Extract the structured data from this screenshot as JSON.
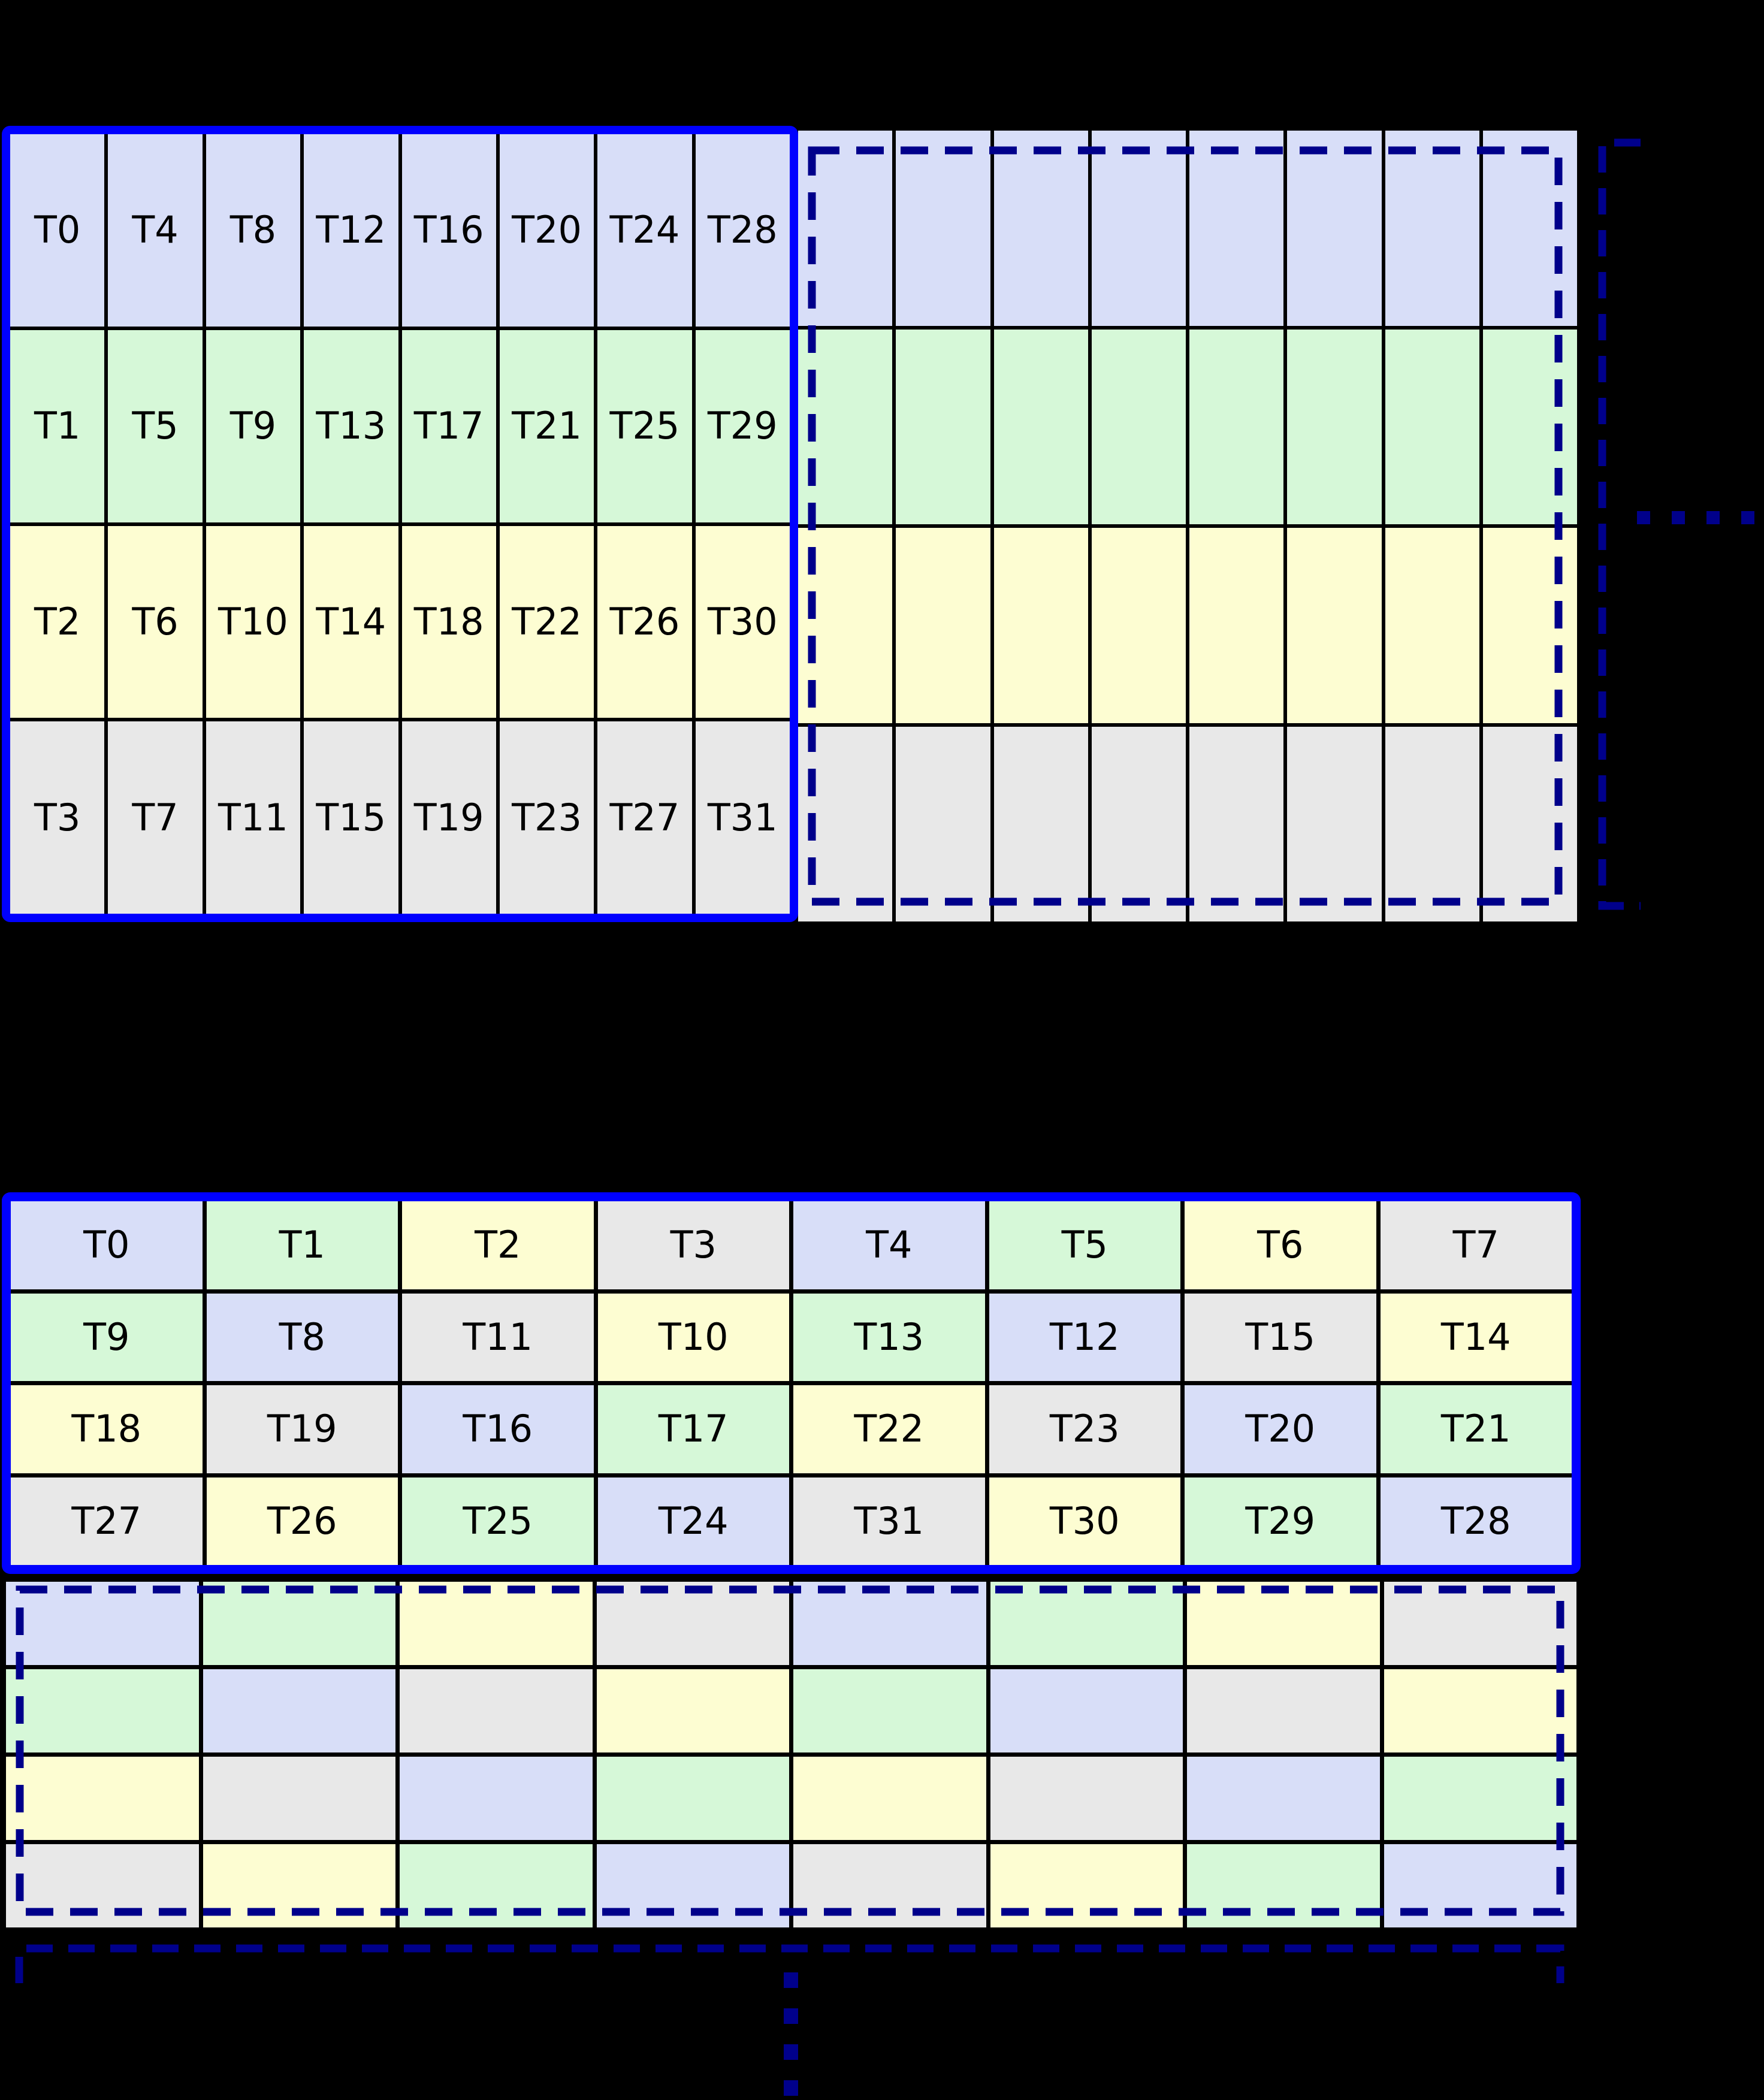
{
  "palette": {
    "background": "#000000",
    "solid_border": "#0000FF",
    "dashed_border": "#00008B",
    "grid_line": "#000000",
    "label_color": "#000000",
    "cell_colors": {
      "blue": "#D8DEF8",
      "green": "#D6F8D8",
      "yellow": "#FDFDD2",
      "gray": "#E8E8E8"
    }
  },
  "top_section": {
    "warp_grid": {
      "rows": [
        {
          "cells": [
            {
              "label": "T0",
              "color": "blue"
            },
            {
              "label": "T4",
              "color": "blue"
            },
            {
              "label": "T8",
              "color": "blue"
            },
            {
              "label": "T12",
              "color": "blue"
            },
            {
              "label": "T16",
              "color": "blue"
            },
            {
              "label": "T20",
              "color": "blue"
            },
            {
              "label": "T24",
              "color": "blue"
            },
            {
              "label": "T28",
              "color": "blue"
            }
          ]
        },
        {
          "cells": [
            {
              "label": "T1",
              "color": "green"
            },
            {
              "label": "T5",
              "color": "green"
            },
            {
              "label": "T9",
              "color": "green"
            },
            {
              "label": "T13",
              "color": "green"
            },
            {
              "label": "T17",
              "color": "green"
            },
            {
              "label": "T21",
              "color": "green"
            },
            {
              "label": "T25",
              "color": "green"
            },
            {
              "label": "T29",
              "color": "green"
            }
          ]
        },
        {
          "cells": [
            {
              "label": "T2",
              "color": "yellow"
            },
            {
              "label": "T6",
              "color": "yellow"
            },
            {
              "label": "T10",
              "color": "yellow"
            },
            {
              "label": "T14",
              "color": "yellow"
            },
            {
              "label": "T18",
              "color": "yellow"
            },
            {
              "label": "T22",
              "color": "yellow"
            },
            {
              "label": "T26",
              "color": "yellow"
            },
            {
              "label": "T30",
              "color": "yellow"
            }
          ]
        },
        {
          "cells": [
            {
              "label": "T3",
              "color": "gray"
            },
            {
              "label": "T7",
              "color": "gray"
            },
            {
              "label": "T11",
              "color": "gray"
            },
            {
              "label": "T15",
              "color": "gray"
            },
            {
              "label": "T19",
              "color": "gray"
            },
            {
              "label": "T23",
              "color": "gray"
            },
            {
              "label": "T27",
              "color": "gray"
            },
            {
              "label": "T31",
              "color": "gray"
            }
          ]
        }
      ]
    },
    "continuation_grid": {
      "rows": [
        {
          "cells": [
            {
              "label": "",
              "color": "blue"
            },
            {
              "label": "",
              "color": "blue"
            },
            {
              "label": "",
              "color": "blue"
            },
            {
              "label": "",
              "color": "blue"
            },
            {
              "label": "",
              "color": "blue"
            },
            {
              "label": "",
              "color": "blue"
            },
            {
              "label": "",
              "color": "blue"
            },
            {
              "label": "",
              "color": "blue"
            }
          ]
        },
        {
          "cells": [
            {
              "label": "",
              "color": "green"
            },
            {
              "label": "",
              "color": "green"
            },
            {
              "label": "",
              "color": "green"
            },
            {
              "label": "",
              "color": "green"
            },
            {
              "label": "",
              "color": "green"
            },
            {
              "label": "",
              "color": "green"
            },
            {
              "label": "",
              "color": "green"
            },
            {
              "label": "",
              "color": "green"
            }
          ]
        },
        {
          "cells": [
            {
              "label": "",
              "color": "yellow"
            },
            {
              "label": "",
              "color": "yellow"
            },
            {
              "label": "",
              "color": "yellow"
            },
            {
              "label": "",
              "color": "yellow"
            },
            {
              "label": "",
              "color": "yellow"
            },
            {
              "label": "",
              "color": "yellow"
            },
            {
              "label": "",
              "color": "yellow"
            },
            {
              "label": "",
              "color": "yellow"
            }
          ]
        },
        {
          "cells": [
            {
              "label": "",
              "color": "gray"
            },
            {
              "label": "",
              "color": "gray"
            },
            {
              "label": "",
              "color": "gray"
            },
            {
              "label": "",
              "color": "gray"
            },
            {
              "label": "",
              "color": "gray"
            },
            {
              "label": "",
              "color": "gray"
            },
            {
              "label": "",
              "color": "gray"
            },
            {
              "label": "",
              "color": "gray"
            }
          ]
        }
      ]
    },
    "horizontal_ellipsis": {
      "count": 4
    }
  },
  "bottom_section": {
    "warp_grid": {
      "rows": [
        {
          "cells": [
            {
              "label": "T0",
              "color": "blue"
            },
            {
              "label": "T1",
              "color": "green"
            },
            {
              "label": "T2",
              "color": "yellow"
            },
            {
              "label": "T3",
              "color": "gray"
            },
            {
              "label": "T4",
              "color": "blue"
            },
            {
              "label": "T5",
              "color": "green"
            },
            {
              "label": "T6",
              "color": "yellow"
            },
            {
              "label": "T7",
              "color": "gray"
            }
          ]
        },
        {
          "cells": [
            {
              "label": "T9",
              "color": "green"
            },
            {
              "label": "T8",
              "color": "blue"
            },
            {
              "label": "T11",
              "color": "gray"
            },
            {
              "label": "T10",
              "color": "yellow"
            },
            {
              "label": "T13",
              "color": "green"
            },
            {
              "label": "T12",
              "color": "blue"
            },
            {
              "label": "T15",
              "color": "gray"
            },
            {
              "label": "T14",
              "color": "yellow"
            }
          ]
        },
        {
          "cells": [
            {
              "label": "T18",
              "color": "yellow"
            },
            {
              "label": "T19",
              "color": "gray"
            },
            {
              "label": "T16",
              "color": "blue"
            },
            {
              "label": "T17",
              "color": "green"
            },
            {
              "label": "T22",
              "color": "yellow"
            },
            {
              "label": "T23",
              "color": "gray"
            },
            {
              "label": "T20",
              "color": "blue"
            },
            {
              "label": "T21",
              "color": "green"
            }
          ]
        },
        {
          "cells": [
            {
              "label": "T27",
              "color": "gray"
            },
            {
              "label": "T26",
              "color": "yellow"
            },
            {
              "label": "T25",
              "color": "green"
            },
            {
              "label": "T24",
              "color": "blue"
            },
            {
              "label": "T31",
              "color": "gray"
            },
            {
              "label": "T30",
              "color": "yellow"
            },
            {
              "label": "T29",
              "color": "green"
            },
            {
              "label": "T28",
              "color": "blue"
            }
          ]
        }
      ]
    },
    "continuation_grid": {
      "rows": [
        {
          "cells": [
            {
              "label": "",
              "color": "blue"
            },
            {
              "label": "",
              "color": "green"
            },
            {
              "label": "",
              "color": "yellow"
            },
            {
              "label": "",
              "color": "gray"
            },
            {
              "label": "",
              "color": "blue"
            },
            {
              "label": "",
              "color": "green"
            },
            {
              "label": "",
              "color": "yellow"
            },
            {
              "label": "",
              "color": "gray"
            }
          ]
        },
        {
          "cells": [
            {
              "label": "",
              "color": "green"
            },
            {
              "label": "",
              "color": "blue"
            },
            {
              "label": "",
              "color": "gray"
            },
            {
              "label": "",
              "color": "yellow"
            },
            {
              "label": "",
              "color": "green"
            },
            {
              "label": "",
              "color": "blue"
            },
            {
              "label": "",
              "color": "gray"
            },
            {
              "label": "",
              "color": "yellow"
            }
          ]
        },
        {
          "cells": [
            {
              "label": "",
              "color": "yellow"
            },
            {
              "label": "",
              "color": "gray"
            },
            {
              "label": "",
              "color": "blue"
            },
            {
              "label": "",
              "color": "green"
            },
            {
              "label": "",
              "color": "yellow"
            },
            {
              "label": "",
              "color": "gray"
            },
            {
              "label": "",
              "color": "blue"
            },
            {
              "label": "",
              "color": "green"
            }
          ]
        },
        {
          "cells": [
            {
              "label": "",
              "color": "gray"
            },
            {
              "label": "",
              "color": "yellow"
            },
            {
              "label": "",
              "color": "green"
            },
            {
              "label": "",
              "color": "blue"
            },
            {
              "label": "",
              "color": "gray"
            },
            {
              "label": "",
              "color": "yellow"
            },
            {
              "label": "",
              "color": "green"
            },
            {
              "label": "",
              "color": "blue"
            }
          ]
        }
      ]
    },
    "vertical_ellipsis": {
      "count": 4
    }
  }
}
